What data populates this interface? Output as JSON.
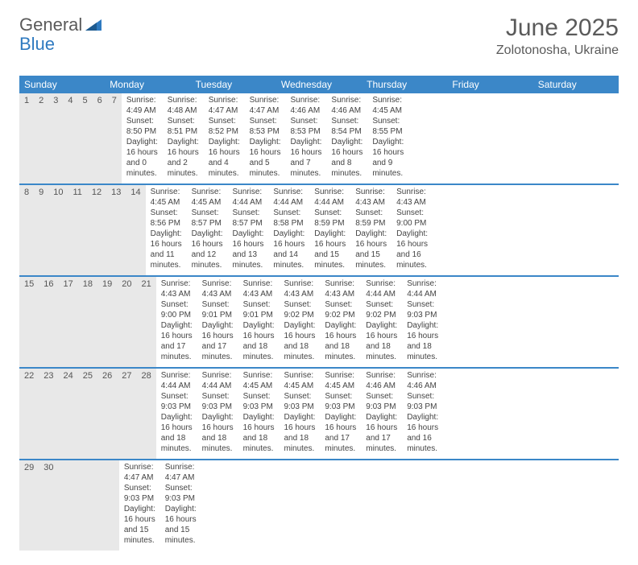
{
  "logo": {
    "word1": "General",
    "word2": "Blue"
  },
  "title": "June 2025",
  "location": "Zolotonosha, Ukraine",
  "colors": {
    "header_bg": "#3b87c8",
    "header_text": "#ffffff",
    "daynum_bg": "#e8e8e8",
    "daynum_text": "#555555",
    "body_text": "#444444",
    "title_text": "#5a5a5a",
    "logo_gray": "#5a5a5a",
    "logo_blue": "#2f7ac0",
    "row_border": "#3b87c8"
  },
  "weekdays": [
    "Sunday",
    "Monday",
    "Tuesday",
    "Wednesday",
    "Thursday",
    "Friday",
    "Saturday"
  ],
  "weeks": [
    [
      {
        "n": "1",
        "sr": "Sunrise: 4:49 AM",
        "ss": "Sunset: 8:50 PM",
        "dl": "Daylight: 16 hours and 0 minutes."
      },
      {
        "n": "2",
        "sr": "Sunrise: 4:48 AM",
        "ss": "Sunset: 8:51 PM",
        "dl": "Daylight: 16 hours and 2 minutes."
      },
      {
        "n": "3",
        "sr": "Sunrise: 4:47 AM",
        "ss": "Sunset: 8:52 PM",
        "dl": "Daylight: 16 hours and 4 minutes."
      },
      {
        "n": "4",
        "sr": "Sunrise: 4:47 AM",
        "ss": "Sunset: 8:53 PM",
        "dl": "Daylight: 16 hours and 5 minutes."
      },
      {
        "n": "5",
        "sr": "Sunrise: 4:46 AM",
        "ss": "Sunset: 8:53 PM",
        "dl": "Daylight: 16 hours and 7 minutes."
      },
      {
        "n": "6",
        "sr": "Sunrise: 4:46 AM",
        "ss": "Sunset: 8:54 PM",
        "dl": "Daylight: 16 hours and 8 minutes."
      },
      {
        "n": "7",
        "sr": "Sunrise: 4:45 AM",
        "ss": "Sunset: 8:55 PM",
        "dl": "Daylight: 16 hours and 9 minutes."
      }
    ],
    [
      {
        "n": "8",
        "sr": "Sunrise: 4:45 AM",
        "ss": "Sunset: 8:56 PM",
        "dl": "Daylight: 16 hours and 11 minutes."
      },
      {
        "n": "9",
        "sr": "Sunrise: 4:45 AM",
        "ss": "Sunset: 8:57 PM",
        "dl": "Daylight: 16 hours and 12 minutes."
      },
      {
        "n": "10",
        "sr": "Sunrise: 4:44 AM",
        "ss": "Sunset: 8:57 PM",
        "dl": "Daylight: 16 hours and 13 minutes."
      },
      {
        "n": "11",
        "sr": "Sunrise: 4:44 AM",
        "ss": "Sunset: 8:58 PM",
        "dl": "Daylight: 16 hours and 14 minutes."
      },
      {
        "n": "12",
        "sr": "Sunrise: 4:44 AM",
        "ss": "Sunset: 8:59 PM",
        "dl": "Daylight: 16 hours and 15 minutes."
      },
      {
        "n": "13",
        "sr": "Sunrise: 4:43 AM",
        "ss": "Sunset: 8:59 PM",
        "dl": "Daylight: 16 hours and 15 minutes."
      },
      {
        "n": "14",
        "sr": "Sunrise: 4:43 AM",
        "ss": "Sunset: 9:00 PM",
        "dl": "Daylight: 16 hours and 16 minutes."
      }
    ],
    [
      {
        "n": "15",
        "sr": "Sunrise: 4:43 AM",
        "ss": "Sunset: 9:00 PM",
        "dl": "Daylight: 16 hours and 17 minutes."
      },
      {
        "n": "16",
        "sr": "Sunrise: 4:43 AM",
        "ss": "Sunset: 9:01 PM",
        "dl": "Daylight: 16 hours and 17 minutes."
      },
      {
        "n": "17",
        "sr": "Sunrise: 4:43 AM",
        "ss": "Sunset: 9:01 PM",
        "dl": "Daylight: 16 hours and 18 minutes."
      },
      {
        "n": "18",
        "sr": "Sunrise: 4:43 AM",
        "ss": "Sunset: 9:02 PM",
        "dl": "Daylight: 16 hours and 18 minutes."
      },
      {
        "n": "19",
        "sr": "Sunrise: 4:43 AM",
        "ss": "Sunset: 9:02 PM",
        "dl": "Daylight: 16 hours and 18 minutes."
      },
      {
        "n": "20",
        "sr": "Sunrise: 4:44 AM",
        "ss": "Sunset: 9:02 PM",
        "dl": "Daylight: 16 hours and 18 minutes."
      },
      {
        "n": "21",
        "sr": "Sunrise: 4:44 AM",
        "ss": "Sunset: 9:03 PM",
        "dl": "Daylight: 16 hours and 18 minutes."
      }
    ],
    [
      {
        "n": "22",
        "sr": "Sunrise: 4:44 AM",
        "ss": "Sunset: 9:03 PM",
        "dl": "Daylight: 16 hours and 18 minutes."
      },
      {
        "n": "23",
        "sr": "Sunrise: 4:44 AM",
        "ss": "Sunset: 9:03 PM",
        "dl": "Daylight: 16 hours and 18 minutes."
      },
      {
        "n": "24",
        "sr": "Sunrise: 4:45 AM",
        "ss": "Sunset: 9:03 PM",
        "dl": "Daylight: 16 hours and 18 minutes."
      },
      {
        "n": "25",
        "sr": "Sunrise: 4:45 AM",
        "ss": "Sunset: 9:03 PM",
        "dl": "Daylight: 16 hours and 18 minutes."
      },
      {
        "n": "26",
        "sr": "Sunrise: 4:45 AM",
        "ss": "Sunset: 9:03 PM",
        "dl": "Daylight: 16 hours and 17 minutes."
      },
      {
        "n": "27",
        "sr": "Sunrise: 4:46 AM",
        "ss": "Sunset: 9:03 PM",
        "dl": "Daylight: 16 hours and 17 minutes."
      },
      {
        "n": "28",
        "sr": "Sunrise: 4:46 AM",
        "ss": "Sunset: 9:03 PM",
        "dl": "Daylight: 16 hours and 16 minutes."
      }
    ],
    [
      {
        "n": "29",
        "sr": "Sunrise: 4:47 AM",
        "ss": "Sunset: 9:03 PM",
        "dl": "Daylight: 16 hours and 15 minutes."
      },
      {
        "n": "30",
        "sr": "Sunrise: 4:47 AM",
        "ss": "Sunset: 9:03 PM",
        "dl": "Daylight: 16 hours and 15 minutes."
      },
      null,
      null,
      null,
      null,
      null
    ]
  ]
}
